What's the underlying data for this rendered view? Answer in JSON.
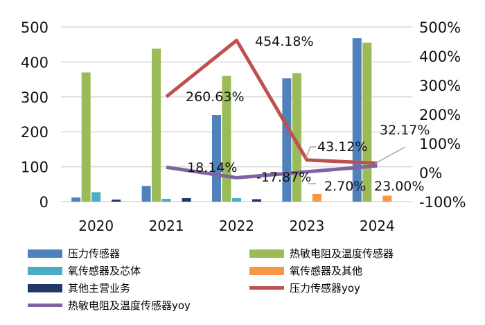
{
  "chart_data": {
    "type": "bar",
    "categories": [
      "2020",
      "2021",
      "2022",
      "2023",
      "2024"
    ],
    "y_left": {
      "lim": [
        0,
        500
      ],
      "ticks": [
        0,
        100,
        200,
        300,
        400,
        500
      ],
      "tick_labels": [
        "0",
        "100",
        "200",
        "300",
        "400",
        "500"
      ]
    },
    "y_right": {
      "lim": [
        -100,
        500
      ],
      "ticks": [
        -100,
        0,
        100,
        200,
        300,
        400,
        500
      ],
      "tick_labels": [
        "-100%",
        "0%",
        "100%",
        "200%",
        "300%",
        "400%",
        "500%"
      ]
    },
    "grid": true,
    "legend_placement": "bottom",
    "series": [
      {
        "name": "压力传感器",
        "kind": "bar",
        "axis": "left",
        "color": "#4f81bd",
        "values": [
          12,
          45,
          248,
          353,
          468
        ]
      },
      {
        "name": "热敏电阻及温度传感器",
        "kind": "bar",
        "axis": "left",
        "color": "#9bbb59",
        "values": [
          370,
          438,
          360,
          368,
          455
        ]
      },
      {
        "name": "氧传感器及芯体",
        "kind": "bar",
        "axis": "left",
        "color": "#4bacc6",
        "values": [
          27,
          8,
          10,
          null,
          null
        ]
      },
      {
        "name": "氧传感器及其他",
        "kind": "bar",
        "axis": "left",
        "color": "#f79646",
        "values": [
          null,
          null,
          null,
          22,
          17
        ]
      },
      {
        "name": "其他主营业务",
        "kind": "bar",
        "axis": "left",
        "color": "#1f3864",
        "values": [
          6,
          10,
          7,
          null,
          null
        ]
      },
      {
        "name": "压力传感器yoy",
        "kind": "line",
        "axis": "right",
        "color": "#c0504d",
        "values": [
          null,
          260.63,
          454.18,
          43.12,
          32.17
        ],
        "labels": [
          null,
          "260.63%",
          "454.18%",
          "43.12%",
          "32.17%"
        ]
      },
      {
        "name": "热敏电阻及温度传感器yoy",
        "kind": "line",
        "axis": "right",
        "color": "#8064a2",
        "values": [
          null,
          18.14,
          -17.87,
          2.7,
          23.0
        ],
        "labels": [
          null,
          "18.14%",
          "-17.87%",
          "2.70%",
          "23.00%"
        ]
      }
    ]
  }
}
